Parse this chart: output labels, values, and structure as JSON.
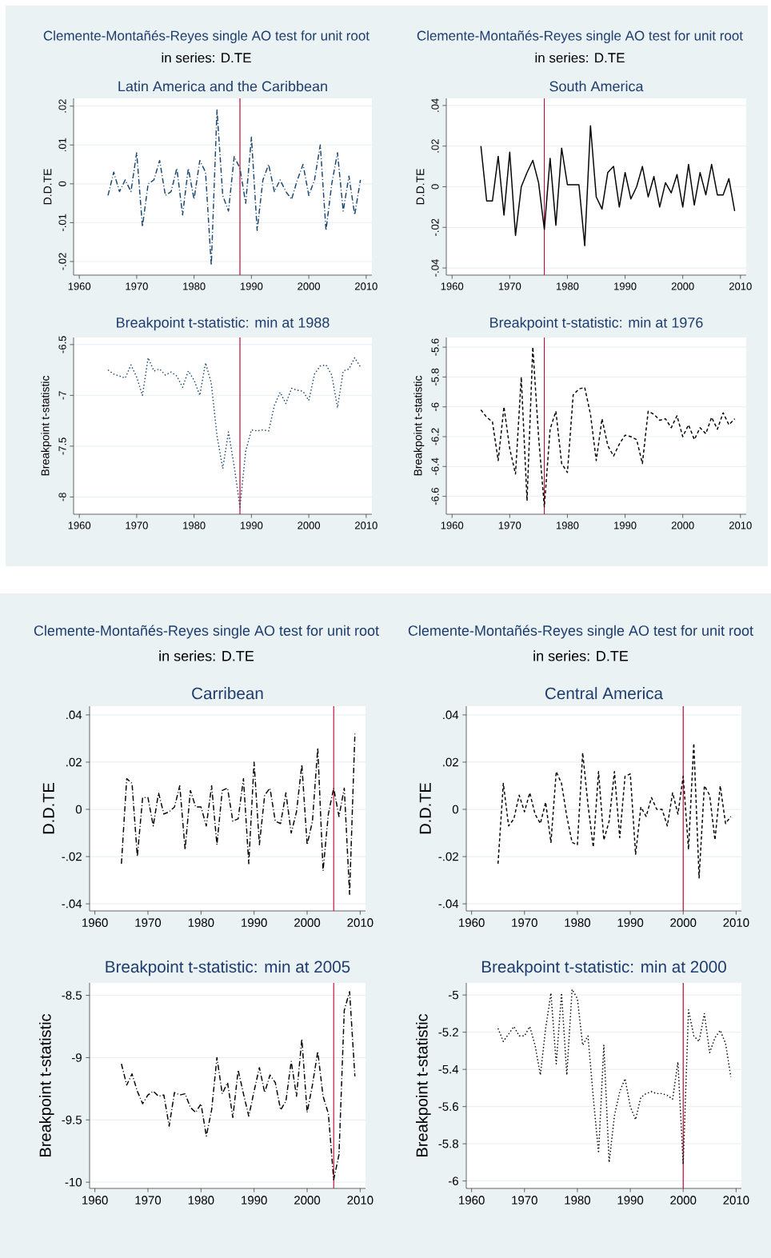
{
  "chart_data": [
    {
      "type": "line",
      "title": "Latin America and the Caribbean",
      "ylabel": "D.D.TE",
      "annotations": [
        "Clemente-Montañés-Reyes single AO test for unit root",
        "in series: D.TE"
      ],
      "x": [
        1965,
        1966,
        1967,
        1968,
        1969,
        1970,
        1971,
        1972,
        1973,
        1974,
        1975,
        1976,
        1977,
        1978,
        1979,
        1980,
        1981,
        1982,
        1983,
        1984,
        1985,
        1986,
        1987,
        1988,
        1989,
        1990,
        1991,
        1992,
        1993,
        1994,
        1995,
        1996,
        1997,
        1998,
        1999,
        2000,
        2001,
        2002,
        2003,
        2004,
        2005,
        2006,
        2007,
        2008,
        2009
      ],
      "values": [
        -0.003,
        0.003,
        -0.002,
        0.001,
        -0.002,
        0.008,
        -0.011,
        0.0,
        0.001,
        0.006,
        -0.003,
        -0.002,
        0.004,
        -0.008,
        0.004,
        -0.004,
        0.006,
        0.003,
        -0.021,
        0.019,
        -0.003,
        -0.007,
        0.007,
        0.004,
        -0.005,
        0.012,
        -0.012,
        0.001,
        0.005,
        -0.002,
        0.001,
        -0.002,
        -0.004,
        0.001,
        0.005,
        -0.003,
        0.001,
        0.01,
        -0.012,
        0.0,
        0.008,
        -0.007,
        0.002,
        -0.008,
        0.001
      ],
      "color": "#1a476f",
      "line_style": "dashdot",
      "xlim": [
        1959,
        2011
      ],
      "ylim": [
        -0.0235,
        0.022
      ],
      "xticks": [
        1960,
        1970,
        1980,
        1990,
        2000,
        2010
      ],
      "yticks": [
        {
          "value": -0.02,
          "label": "-.02"
        },
        {
          "value": -0.01,
          "label": "-.01"
        },
        0,
        {
          "value": 0.01,
          "label": ".01"
        },
        {
          "value": 0.02,
          "label": ".02"
        }
      ],
      "ref_lines": [
        {
          "axis": "x",
          "value": 1988,
          "color": "#c10534"
        }
      ],
      "grid": "y"
    },
    {
      "type": "line",
      "title": "South America",
      "ylabel": "D.D.TE",
      "annotations": [
        "Clemente-Montañés-Reyes single AO test for unit root",
        "in series: D.TE"
      ],
      "x": [
        1965,
        1966,
        1967,
        1968,
        1969,
        1970,
        1971,
        1972,
        1973,
        1974,
        1975,
        1976,
        1977,
        1978,
        1979,
        1980,
        1981,
        1982,
        1983,
        1984,
        1985,
        1986,
        1987,
        1988,
        1989,
        1990,
        1991,
        1992,
        1993,
        1994,
        1995,
        1996,
        1997,
        1998,
        1999,
        2000,
        2001,
        2002,
        2003,
        2004,
        2005,
        2006,
        2007,
        2008,
        2009
      ],
      "values": [
        0.02,
        -0.007,
        -0.007,
        0.015,
        -0.014,
        0.017,
        -0.024,
        0.0,
        0.007,
        0.013,
        0.002,
        -0.021,
        0.014,
        -0.019,
        0.019,
        0.001,
        0.001,
        0.001,
        -0.029,
        0.03,
        -0.005,
        -0.011,
        0.007,
        0.01,
        -0.01,
        0.007,
        -0.006,
        0.0,
        0.01,
        -0.005,
        0.005,
        -0.01,
        0.002,
        -0.003,
        0.006,
        -0.01,
        0.011,
        -0.009,
        0.007,
        -0.004,
        0.011,
        -0.004,
        -0.004,
        0.004,
        -0.012
      ],
      "color": "#000000",
      "line_style": "solid",
      "xlim": [
        1959,
        2011
      ],
      "ylim": [
        -0.0435,
        0.0435
      ],
      "xticks": [
        1960,
        1970,
        1980,
        1990,
        2000,
        2010
      ],
      "yticks": [
        {
          "value": -0.04,
          "label": "-.04"
        },
        {
          "value": -0.02,
          "label": "-.02"
        },
        0,
        {
          "value": 0.02,
          "label": ".02"
        },
        {
          "value": 0.04,
          "label": ".04"
        }
      ],
      "ref_lines": [
        {
          "axis": "x",
          "value": 1976,
          "color": "#c10534"
        }
      ],
      "grid": "y"
    },
    {
      "type": "line",
      "title": "Breakpoint t-statistic: min at 1988",
      "ylabel": "Breakpoint t-statistic",
      "x": [
        1965,
        1966,
        1967,
        1968,
        1969,
        1970,
        1971,
        1972,
        1973,
        1974,
        1975,
        1976,
        1977,
        1978,
        1979,
        1980,
        1981,
        1982,
        1983,
        1984,
        1985,
        1986,
        1987,
        1988,
        1989,
        1990,
        1991,
        1992,
        1993,
        1994,
        1995,
        1996,
        1997,
        1998,
        1999,
        2000,
        2001,
        2002,
        2003,
        2004,
        2005,
        2006,
        2007,
        2008,
        2009
      ],
      "values": [
        -6.75,
        -6.79,
        -6.81,
        -6.83,
        -6.7,
        -6.82,
        -7.0,
        -6.63,
        -6.76,
        -6.74,
        -6.8,
        -6.77,
        -6.81,
        -6.92,
        -6.76,
        -6.85,
        -7.0,
        -6.68,
        -6.88,
        -7.4,
        -7.72,
        -7.36,
        -7.7,
        -8.1,
        -7.55,
        -7.34,
        -7.35,
        -7.34,
        -7.35,
        -7.1,
        -6.97,
        -7.08,
        -6.93,
        -6.95,
        -6.96,
        -7.05,
        -6.79,
        -6.71,
        -6.7,
        -6.8,
        -7.12,
        -6.76,
        -6.74,
        -6.63,
        -6.72
      ],
      "color": "#1a476f",
      "line_style": "dotted",
      "xlim": [
        1959,
        2011
      ],
      "ylim": [
        -8.17,
        -6.43
      ],
      "xticks": [
        1960,
        1970,
        1980,
        1990,
        2000,
        2010
      ],
      "yticks": [
        -8,
        -7.5,
        -7,
        -6.5
      ],
      "ref_lines": [
        {
          "axis": "x",
          "value": 1988,
          "color": "#c10534"
        }
      ],
      "grid": "y"
    },
    {
      "type": "line",
      "title": "Breakpoint t-statistic: min at 1976",
      "ylabel": "Breakpoint t-statistic",
      "x": [
        1965,
        1966,
        1967,
        1968,
        1969,
        1970,
        1971,
        1972,
        1973,
        1974,
        1975,
        1976,
        1977,
        1978,
        1979,
        1980,
        1981,
        1982,
        1983,
        1984,
        1985,
        1986,
        1987,
        1988,
        1989,
        1990,
        1991,
        1992,
        1993,
        1994,
        1995,
        1996,
        1997,
        1998,
        1999,
        2000,
        2001,
        2002,
        2003,
        2004,
        2005,
        2006,
        2007,
        2008,
        2009
      ],
      "values": [
        -6.02,
        -6.07,
        -6.1,
        -6.36,
        -6.0,
        -6.28,
        -6.45,
        -5.8,
        -6.63,
        -5.6,
        -6.2,
        -6.67,
        -6.15,
        -6.03,
        -6.38,
        -6.44,
        -5.92,
        -5.88,
        -5.87,
        -6.05,
        -6.36,
        -6.08,
        -6.26,
        -6.33,
        -6.25,
        -6.19,
        -6.2,
        -6.22,
        -6.38,
        -6.03,
        -6.05,
        -6.09,
        -6.08,
        -6.14,
        -6.06,
        -6.2,
        -6.12,
        -6.22,
        -6.14,
        -6.18,
        -6.07,
        -6.15,
        -6.04,
        -6.12,
        -6.08
      ],
      "color": "#000000",
      "line_style": "dashed",
      "xlim": [
        1959,
        2011
      ],
      "ylim": [
        -6.72,
        -5.535
      ],
      "xticks": [
        1960,
        1970,
        1980,
        1990,
        2000,
        2010
      ],
      "yticks": [
        -6.6,
        -6.4,
        -6.2,
        -6,
        -5.8,
        -5.6
      ],
      "ref_lines": [
        {
          "axis": "x",
          "value": 1976,
          "color": "#c10534"
        }
      ],
      "grid": "y"
    },
    {
      "type": "line",
      "title": "Carribean",
      "ylabel": "D.D.TE",
      "annotations": [
        "Clemente-Montañés-Reyes single AO test for unit root",
        "in series: D.TE"
      ],
      "x": [
        1965,
        1966,
        1967,
        1968,
        1969,
        1970,
        1971,
        1972,
        1973,
        1974,
        1975,
        1976,
        1977,
        1978,
        1979,
        1980,
        1981,
        1982,
        1983,
        1984,
        1985,
        1986,
        1987,
        1988,
        1989,
        1990,
        1991,
        1992,
        1993,
        1994,
        1995,
        1996,
        1997,
        1998,
        1999,
        2000,
        2001,
        2002,
        2003,
        2004,
        2005,
        2006,
        2007,
        2008,
        2009
      ],
      "values": [
        -0.023,
        0.013,
        0.011,
        -0.02,
        0.005,
        0.005,
        -0.007,
        0.007,
        -0.002,
        -0.001,
        0.001,
        0.01,
        -0.017,
        0.008,
        0.001,
        0.001,
        -0.007,
        0.01,
        -0.015,
        0.008,
        0.009,
        -0.005,
        -0.004,
        0.013,
        -0.023,
        0.02,
        -0.015,
        0.006,
        0.009,
        -0.005,
        -0.006,
        0.007,
        -0.01,
        -0.001,
        0.019,
        -0.015,
        -0.005,
        0.026,
        -0.026,
        -0.002,
        0.009,
        -0.003,
        0.009,
        -0.036,
        0.032
      ],
      "color": "#000000",
      "line_style": "dashdot",
      "xlim": [
        1959,
        2011
      ],
      "ylim": [
        -0.043,
        0.0437
      ],
      "xticks": [
        1960,
        1970,
        1980,
        1990,
        2000,
        2010
      ],
      "yticks": [
        {
          "value": -0.04,
          "label": "-.04"
        },
        {
          "value": -0.02,
          "label": "-.02"
        },
        0,
        {
          "value": 0.02,
          "label": ".02"
        },
        {
          "value": 0.04,
          "label": ".04"
        }
      ],
      "ref_lines": [
        {
          "axis": "x",
          "value": 2005,
          "color": "#c10534"
        }
      ],
      "grid": "y"
    },
    {
      "type": "line",
      "title": "Central America",
      "ylabel": "D.D.TE",
      "annotations": [
        "Clemente-Montañés-Reyes single AO test for unit root",
        "in series: D.TE"
      ],
      "x": [
        1965,
        1966,
        1967,
        1968,
        1969,
        1970,
        1971,
        1972,
        1973,
        1974,
        1975,
        1976,
        1977,
        1978,
        1979,
        1980,
        1981,
        1982,
        1983,
        1984,
        1985,
        1986,
        1987,
        1988,
        1989,
        1990,
        1991,
        1992,
        1993,
        1994,
        1995,
        1996,
        1997,
        1998,
        1999,
        2000,
        2001,
        2002,
        2003,
        2004,
        2005,
        2006,
        2007,
        2008,
        2009
      ],
      "values": [
        -0.023,
        0.011,
        -0.007,
        -0.004,
        0.006,
        -0.001,
        0.007,
        -0.002,
        -0.006,
        0.003,
        -0.014,
        0.016,
        0.011,
        -0.003,
        -0.014,
        -0.015,
        0.024,
        0.002,
        -0.016,
        0.016,
        -0.013,
        -0.005,
        0.016,
        -0.012,
        0.014,
        0.015,
        -0.019,
        0.001,
        -0.003,
        0.005,
        0.0,
        0.0,
        -0.007,
        0.007,
        -0.002,
        0.014,
        -0.017,
        0.028,
        -0.029,
        0.01,
        0.006,
        -0.013,
        0.01,
        -0.006,
        -0.003
      ],
      "color": "#000000",
      "line_style": "dashed",
      "xlim": [
        1959,
        2011
      ],
      "ylim": [
        -0.043,
        0.0437
      ],
      "xticks": [
        1960,
        1970,
        1980,
        1990,
        2000,
        2010
      ],
      "yticks": [
        {
          "value": -0.04,
          "label": "-.04"
        },
        {
          "value": -0.02,
          "label": "-.02"
        },
        0,
        {
          "value": 0.02,
          "label": ".02"
        },
        {
          "value": 0.04,
          "label": ".04"
        }
      ],
      "ref_lines": [
        {
          "axis": "x",
          "value": 2000,
          "color": "#c10534"
        }
      ],
      "grid": "y"
    },
    {
      "type": "line",
      "title": "Breakpoint t-statistic: min at 2005",
      "ylabel": "Breakpoint t-statistic",
      "x": [
        1965,
        1966,
        1967,
        1968,
        1969,
        1970,
        1971,
        1972,
        1973,
        1974,
        1975,
        1976,
        1977,
        1978,
        1979,
        1980,
        1981,
        1982,
        1983,
        1984,
        1985,
        1986,
        1987,
        1988,
        1989,
        1990,
        1991,
        1992,
        1993,
        1994,
        1995,
        1996,
        1997,
        1998,
        1999,
        2000,
        2001,
        2002,
        2003,
        2004,
        2005,
        2006,
        2007,
        2008,
        2009
      ],
      "values": [
        -9.05,
        -9.22,
        -9.13,
        -9.27,
        -9.37,
        -9.3,
        -9.27,
        -9.31,
        -9.3,
        -9.55,
        -9.28,
        -9.3,
        -9.29,
        -9.4,
        -9.44,
        -9.37,
        -9.63,
        -9.42,
        -9.0,
        -9.29,
        -9.2,
        -9.48,
        -9.1,
        -9.29,
        -9.47,
        -9.27,
        -9.08,
        -9.28,
        -9.14,
        -9.2,
        -9.42,
        -9.35,
        -9.03,
        -9.31,
        -8.85,
        -9.44,
        -9.22,
        -8.95,
        -9.31,
        -9.45,
        -9.98,
        -9.78,
        -8.62,
        -8.47,
        -9.15
      ],
      "color": "#000000",
      "line_style": "dashdot",
      "xlim": [
        1959,
        2011
      ],
      "ylim": [
        -10.05,
        -8.4
      ],
      "xticks": [
        1960,
        1970,
        1980,
        1990,
        2000,
        2010
      ],
      "yticks": [
        -10,
        -9.5,
        -9,
        -8.5
      ],
      "ref_lines": [
        {
          "axis": "x",
          "value": 2005,
          "color": "#c10534"
        }
      ],
      "grid": "y"
    },
    {
      "type": "line",
      "title": "Breakpoint t-statistic: min at 2000",
      "ylabel": "Breakpoint t-statistic",
      "x": [
        1965,
        1966,
        1967,
        1968,
        1969,
        1970,
        1971,
        1972,
        1973,
        1974,
        1975,
        1976,
        1977,
        1978,
        1979,
        1980,
        1981,
        1982,
        1983,
        1984,
        1985,
        1986,
        1987,
        1988,
        1989,
        1990,
        1991,
        1992,
        1993,
        1994,
        1995,
        1996,
        1997,
        1998,
        1999,
        2000,
        2001,
        2002,
        2003,
        2004,
        2005,
        2006,
        2007,
        2008,
        2009
      ],
      "values": [
        -5.18,
        -5.25,
        -5.21,
        -5.17,
        -5.22,
        -5.22,
        -5.17,
        -5.27,
        -5.43,
        -5.18,
        -4.99,
        -5.37,
        -4.99,
        -5.43,
        -4.97,
        -5.02,
        -5.27,
        -5.22,
        -5.55,
        -5.85,
        -5.27,
        -5.9,
        -5.65,
        -5.52,
        -5.45,
        -5.6,
        -5.67,
        -5.55,
        -5.53,
        -5.52,
        -5.53,
        -5.53,
        -5.54,
        -5.56,
        -5.36,
        -5.91,
        -5.08,
        -5.22,
        -5.25,
        -5.1,
        -5.31,
        -5.23,
        -5.19,
        -5.26,
        -5.44
      ],
      "color": "#000000",
      "line_style": "dotted",
      "xlim": [
        1959,
        2011
      ],
      "ylim": [
        -6.04,
        -4.935
      ],
      "xticks": [
        1960,
        1970,
        1980,
        1990,
        2000,
        2010
      ],
      "yticks": [
        -6,
        -5.8,
        -5.6,
        -5.4,
        -5.2,
        -5
      ],
      "ref_lines": [
        {
          "axis": "x",
          "value": 2000,
          "color": "#c10534"
        }
      ],
      "grid": "y"
    }
  ]
}
